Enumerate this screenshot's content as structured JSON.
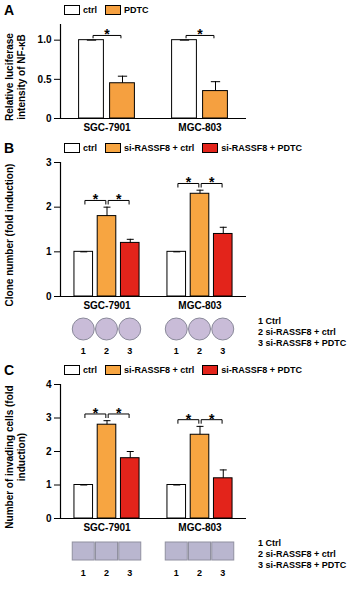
{
  "chart_data": [
    {
      "type": "bar",
      "title": "A",
      "y_label": "Relative luciferase intensity of NF-κB",
      "categories": [
        "SGC-7901",
        "MGC-803"
      ],
      "series": [
        {
          "name": "ctrl",
          "color": "#ffffff",
          "values": [
            1,
            1
          ],
          "errors": [
            0,
            0
          ]
        },
        {
          "name": "PDTC",
          "color": "#f5a040",
          "values": [
            0.45,
            0.35
          ],
          "errors": [
            0.09,
            0.12
          ]
        }
      ],
      "ylim": [
        0,
        1.2
      ],
      "yticks": [
        0,
        0.5,
        {
          "value": 1,
          "label": "1.0"
        }
      ],
      "legend": "top-left",
      "significance": [
        {
          "category": "SGC-7901",
          "from": "ctrl",
          "to": "PDTC",
          "label": "*"
        },
        {
          "category": "MGC-803",
          "from": "ctrl",
          "to": "PDTC",
          "label": "*"
        }
      ]
    },
    {
      "type": "bar",
      "title": "B",
      "y_label": "Clone number (fold induction)",
      "categories": [
        "SGC-7901",
        "MGC-803"
      ],
      "series": [
        {
          "name": "ctrl",
          "color": "#ffffff",
          "values": [
            1,
            1
          ],
          "errors": [
            0,
            0
          ]
        },
        {
          "name": "si-RASSF8 + ctrl",
          "color": "#f7a541",
          "values": [
            1.8,
            2.3
          ],
          "errors": [
            0.2,
            0.08
          ]
        },
        {
          "name": "si-RASSF8 + PDTC",
          "color": "#e3241b",
          "values": [
            1.2,
            1.4
          ],
          "errors": [
            0.08,
            0.15
          ]
        }
      ],
      "ylim": [
        0,
        3
      ],
      "yticks": [
        0,
        1,
        2,
        3
      ],
      "legend": "top-left",
      "significance": [
        {
          "category": "SGC-7901",
          "from": "ctrl",
          "to": "si-RASSF8 + ctrl",
          "label": "*"
        },
        {
          "category": "SGC-7901",
          "from": "si-RASSF8 + ctrl",
          "to": "si-RASSF8 + PDTC",
          "label": "*"
        },
        {
          "category": "MGC-803",
          "from": "ctrl",
          "to": "si-RASSF8 + ctrl",
          "label": "*"
        },
        {
          "category": "MGC-803",
          "from": "si-RASSF8 + ctrl",
          "to": "si-RASSF8 + PDTC",
          "label": "*"
        }
      ],
      "image_labels": [
        "1",
        "2",
        "3"
      ],
      "image_key": [
        {
          "label": "1",
          "text": "Ctrl"
        },
        {
          "label": "2",
          "text": "si-RASSF8 + ctrl"
        },
        {
          "label": "3",
          "text": "si-RASSF8 + PDTC"
        }
      ]
    },
    {
      "type": "bar",
      "title": "C",
      "y_label": "Number of invading cells (fold induction)",
      "categories": [
        "SGC-7901",
        "MGC-803"
      ],
      "series": [
        {
          "name": "ctrl",
          "color": "#ffffff",
          "values": [
            1,
            1
          ],
          "errors": [
            0,
            0
          ]
        },
        {
          "name": "si-RASSF8 + ctrl",
          "color": "#f7a541",
          "values": [
            2.8,
            2.5
          ],
          "errors": [
            0.12,
            0.25
          ]
        },
        {
          "name": "si-RASSF8 + PDTC",
          "color": "#e3241b",
          "values": [
            1.8,
            1.2
          ],
          "errors": [
            0.2,
            0.25
          ]
        }
      ],
      "ylim": [
        0,
        4
      ],
      "yticks": [
        0,
        1,
        2,
        3,
        4
      ],
      "legend": "top-left",
      "significance": [
        {
          "category": "SGC-7901",
          "from": "ctrl",
          "to": "si-RASSF8 + ctrl",
          "label": "*"
        },
        {
          "category": "SGC-7901",
          "from": "si-RASSF8 + ctrl",
          "to": "si-RASSF8 + PDTC",
          "label": "*"
        },
        {
          "category": "MGC-803",
          "from": "ctrl",
          "to": "si-RASSF8 + ctrl",
          "label": "*"
        },
        {
          "category": "MGC-803",
          "from": "si-RASSF8 + ctrl",
          "to": "si-RASSF8 + PDTC",
          "label": "*"
        }
      ],
      "image_labels": [
        "1",
        "2",
        "3"
      ],
      "image_key": [
        {
          "label": "1",
          "text": "Ctrl"
        },
        {
          "label": "2",
          "text": "si-RASSF8 + ctrl"
        },
        {
          "label": "3",
          "text": "si-RASSF8 + PDTC"
        }
      ]
    }
  ]
}
